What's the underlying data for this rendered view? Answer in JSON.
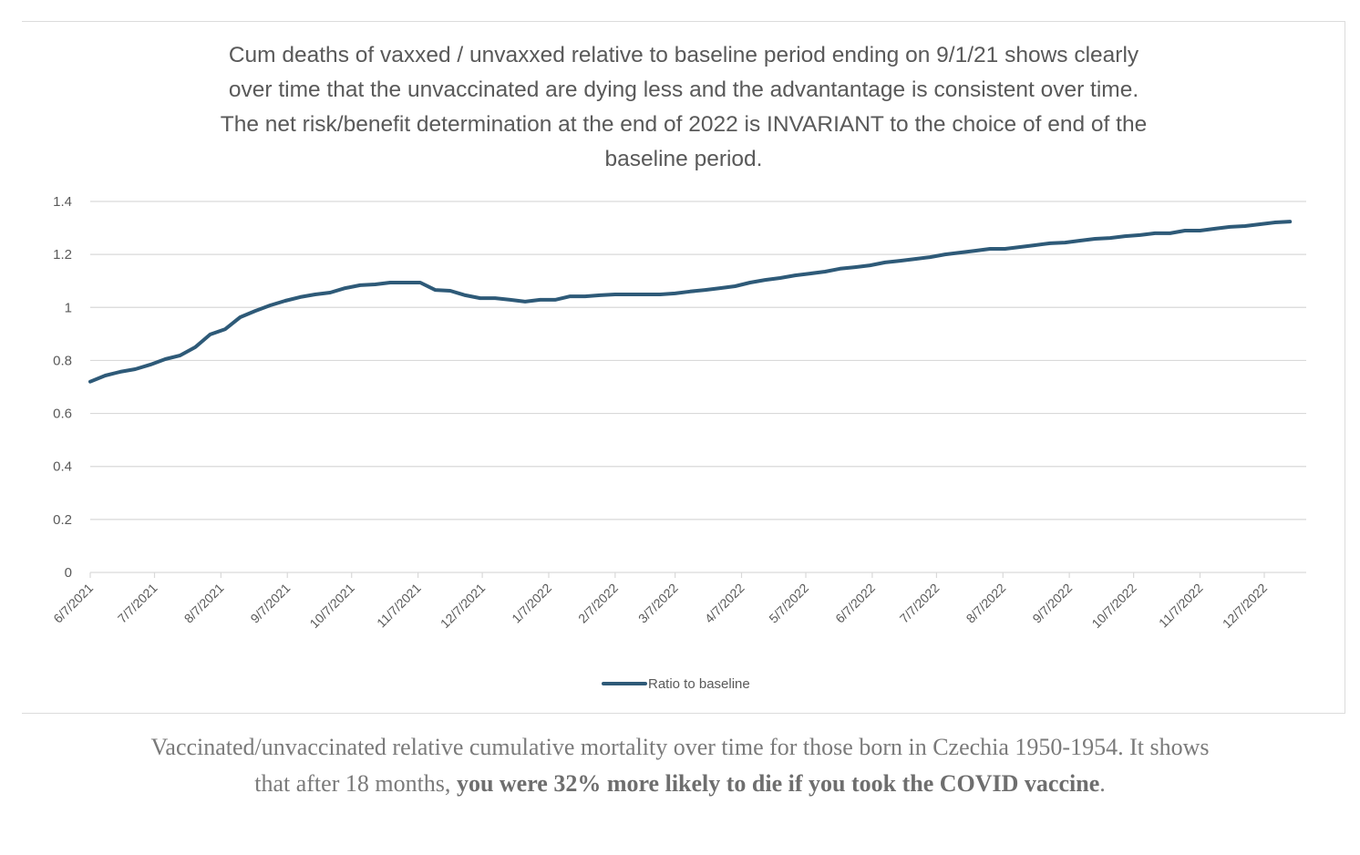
{
  "chart_data": {
    "type": "line",
    "title_lines": [
      "Cum deaths of vaxxed / unvaxxed relative to baseline period ending on 9/1/21 shows clearly",
      "over time that the unvaccinated are dying less and the advantantage is consistent over time.",
      "The net risk/benefit determination at the end of 2022 is INVARIANT to the choice of end of the",
      "baseline period."
    ],
    "xlabel": "",
    "ylabel": "",
    "ylim": [
      0,
      1.4
    ],
    "yticks": [
      "0",
      "0.2",
      "0.4",
      "0.6",
      "0.8",
      "1",
      "1.2",
      "1.4"
    ],
    "ytick_values": [
      0,
      0.2,
      0.4,
      0.6,
      0.8,
      1.0,
      1.2,
      1.4
    ],
    "xticks": [
      "6/7/2021",
      "7/7/2021",
      "8/7/2021",
      "9/7/2021",
      "10/7/2021",
      "11/7/2021",
      "12/7/2021",
      "1/7/2022",
      "2/7/2022",
      "3/7/2022",
      "4/7/2022",
      "5/7/2022",
      "6/7/2022",
      "7/7/2022",
      "8/7/2022",
      "9/7/2022",
      "10/7/2022",
      "11/7/2022",
      "12/7/2022"
    ],
    "x_start": "2021-06-07",
    "x_interval_days": 7,
    "grid": "horizontal",
    "legend_position": "bottom-center",
    "line_color": "#2e5a78",
    "series": [
      {
        "name": "Ratio to baseline",
        "values": [
          0.72,
          0.743,
          0.757,
          0.767,
          0.784,
          0.805,
          0.819,
          0.85,
          0.898,
          0.918,
          0.963,
          0.987,
          1.008,
          1.025,
          1.039,
          1.049,
          1.056,
          1.073,
          1.084,
          1.087,
          1.094,
          1.094,
          1.094,
          1.066,
          1.063,
          1.046,
          1.035,
          1.035,
          1.029,
          1.022,
          1.029,
          1.029,
          1.042,
          1.042,
          1.046,
          1.049,
          1.049,
          1.049,
          1.049,
          1.053,
          1.06,
          1.066,
          1.073,
          1.08,
          1.094,
          1.104,
          1.111,
          1.121,
          1.128,
          1.135,
          1.146,
          1.152,
          1.159,
          1.17,
          1.176,
          1.183,
          1.19,
          1.2,
          1.207,
          1.214,
          1.221,
          1.221,
          1.228,
          1.235,
          1.242,
          1.245,
          1.252,
          1.259,
          1.262,
          1.269,
          1.273,
          1.28,
          1.28,
          1.29,
          1.29,
          1.297,
          1.304,
          1.307,
          1.314,
          1.321,
          1.324
        ]
      }
    ]
  },
  "legend": {
    "label": "Ratio to baseline"
  },
  "caption": {
    "normal": "Vaccinated/unvaccinated relative cumulative mortality over time for those born in Czechia 1950-1954. It shows that after 18 months, ",
    "bold": "you were 32% more likely to die if you took the COVID vaccine",
    "tail": "."
  }
}
